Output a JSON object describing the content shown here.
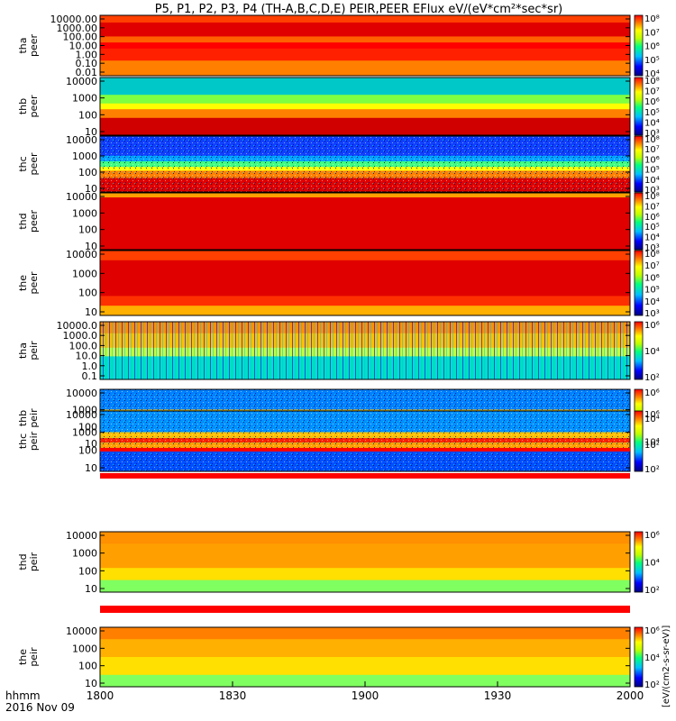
{
  "title": "P5, P1, P2, P3, P4 (TH-A,B,C,D,E) PEIR,PEER EFlux eV/(eV*cm²*sec*sr)",
  "time_label_line1": "hhmm",
  "time_label_line2": "2016 Nov 09",
  "colorbar_unit_label": "[eV/(cm2-s-sr-eV)]",
  "x_ticks": [
    "1800",
    "1830",
    "1900",
    "1930",
    "2000"
  ],
  "chart_data": {
    "type": "heatmap",
    "title": "P5, P1, P2, P3, P4 (TH-A,B,C,D,E) PEIR,PEER EFlux eV/(eV*cm²*sec*sr)",
    "x_range": [
      "18:00",
      "20:00"
    ],
    "x_ticks": [
      "1800",
      "1830",
      "1900",
      "1930",
      "2000"
    ],
    "ylog": true,
    "colormap": "rainbow",
    "panels": [
      {
        "name": "tha peer",
        "ylabels": [
          "10000.00",
          "1000.00",
          "100.00",
          "10.00",
          "1.00",
          "0.10",
          "0.01"
        ],
        "cbar_ticks": [
          "10⁸",
          "10⁷",
          "10⁶",
          "10⁵",
          "10⁴"
        ],
        "dominant": "red/orange"
      },
      {
        "name": "thb peer",
        "ylabels": [
          "10000",
          "1000",
          "100",
          "10"
        ],
        "cbar_ticks": [
          "10⁸",
          "10⁷",
          "10⁶",
          "10⁵",
          "10⁴",
          "10³"
        ],
        "dominant": "red/orange low, cyan high"
      },
      {
        "name": "thc peer",
        "ylabels": [
          "10000",
          "1000",
          "100",
          "10"
        ],
        "cbar_ticks": [
          "10⁸",
          "10⁷",
          "10⁶",
          "10⁵",
          "10⁴",
          "10³"
        ],
        "dominant": "blue high, red/orange low"
      },
      {
        "name": "thd peer",
        "ylabels": [
          "10000",
          "1000",
          "100",
          "10"
        ],
        "cbar_ticks": [
          "10⁸",
          "10⁷",
          "10⁶",
          "10⁵",
          "10⁴",
          "10³"
        ],
        "dominant": "red/dark red"
      },
      {
        "name": "the peer",
        "ylabels": [
          "10000",
          "1000",
          "100",
          "10"
        ],
        "cbar_ticks": [
          "10⁸",
          "10⁷",
          "10⁶",
          "10⁵",
          "10⁴",
          "10³"
        ],
        "dominant": "red/dark red"
      },
      {
        "name": "tha peir",
        "ylabels": [
          "10000.0",
          "1000.0",
          "100.0",
          "10.0",
          "1.0",
          "0.1"
        ],
        "cbar_ticks": [
          "10⁶",
          "10⁴",
          "10²"
        ],
        "dominant": "orange high, cyan low"
      },
      {
        "name": "thb peir",
        "ylabels": [
          "10000",
          "1000",
          "100",
          "10"
        ],
        "cbar_ticks": [
          "10⁶",
          "10⁴",
          "10²"
        ],
        "dominant": "blue/cyan with red band"
      },
      {
        "name": "thc peir",
        "ylabels": [
          "10000",
          "1000",
          "100",
          "10"
        ],
        "cbar_ticks": [
          "10⁶",
          "10⁴",
          "10²"
        ],
        "dominant": "blue/cyan with red band"
      },
      {
        "name": "thd peir",
        "ylabels": [
          "10000",
          "1000",
          "100",
          "10"
        ],
        "cbar_ticks": [
          "10⁶",
          "10⁴",
          "10²"
        ],
        "dominant": "orange/yellow"
      },
      {
        "name": "the peir",
        "ylabels": [
          "10000",
          "1000",
          "100",
          "10"
        ],
        "cbar_ticks": [
          "10⁶",
          "10⁴",
          "10²"
        ],
        "dominant": "orange/yellow/green"
      }
    ]
  }
}
